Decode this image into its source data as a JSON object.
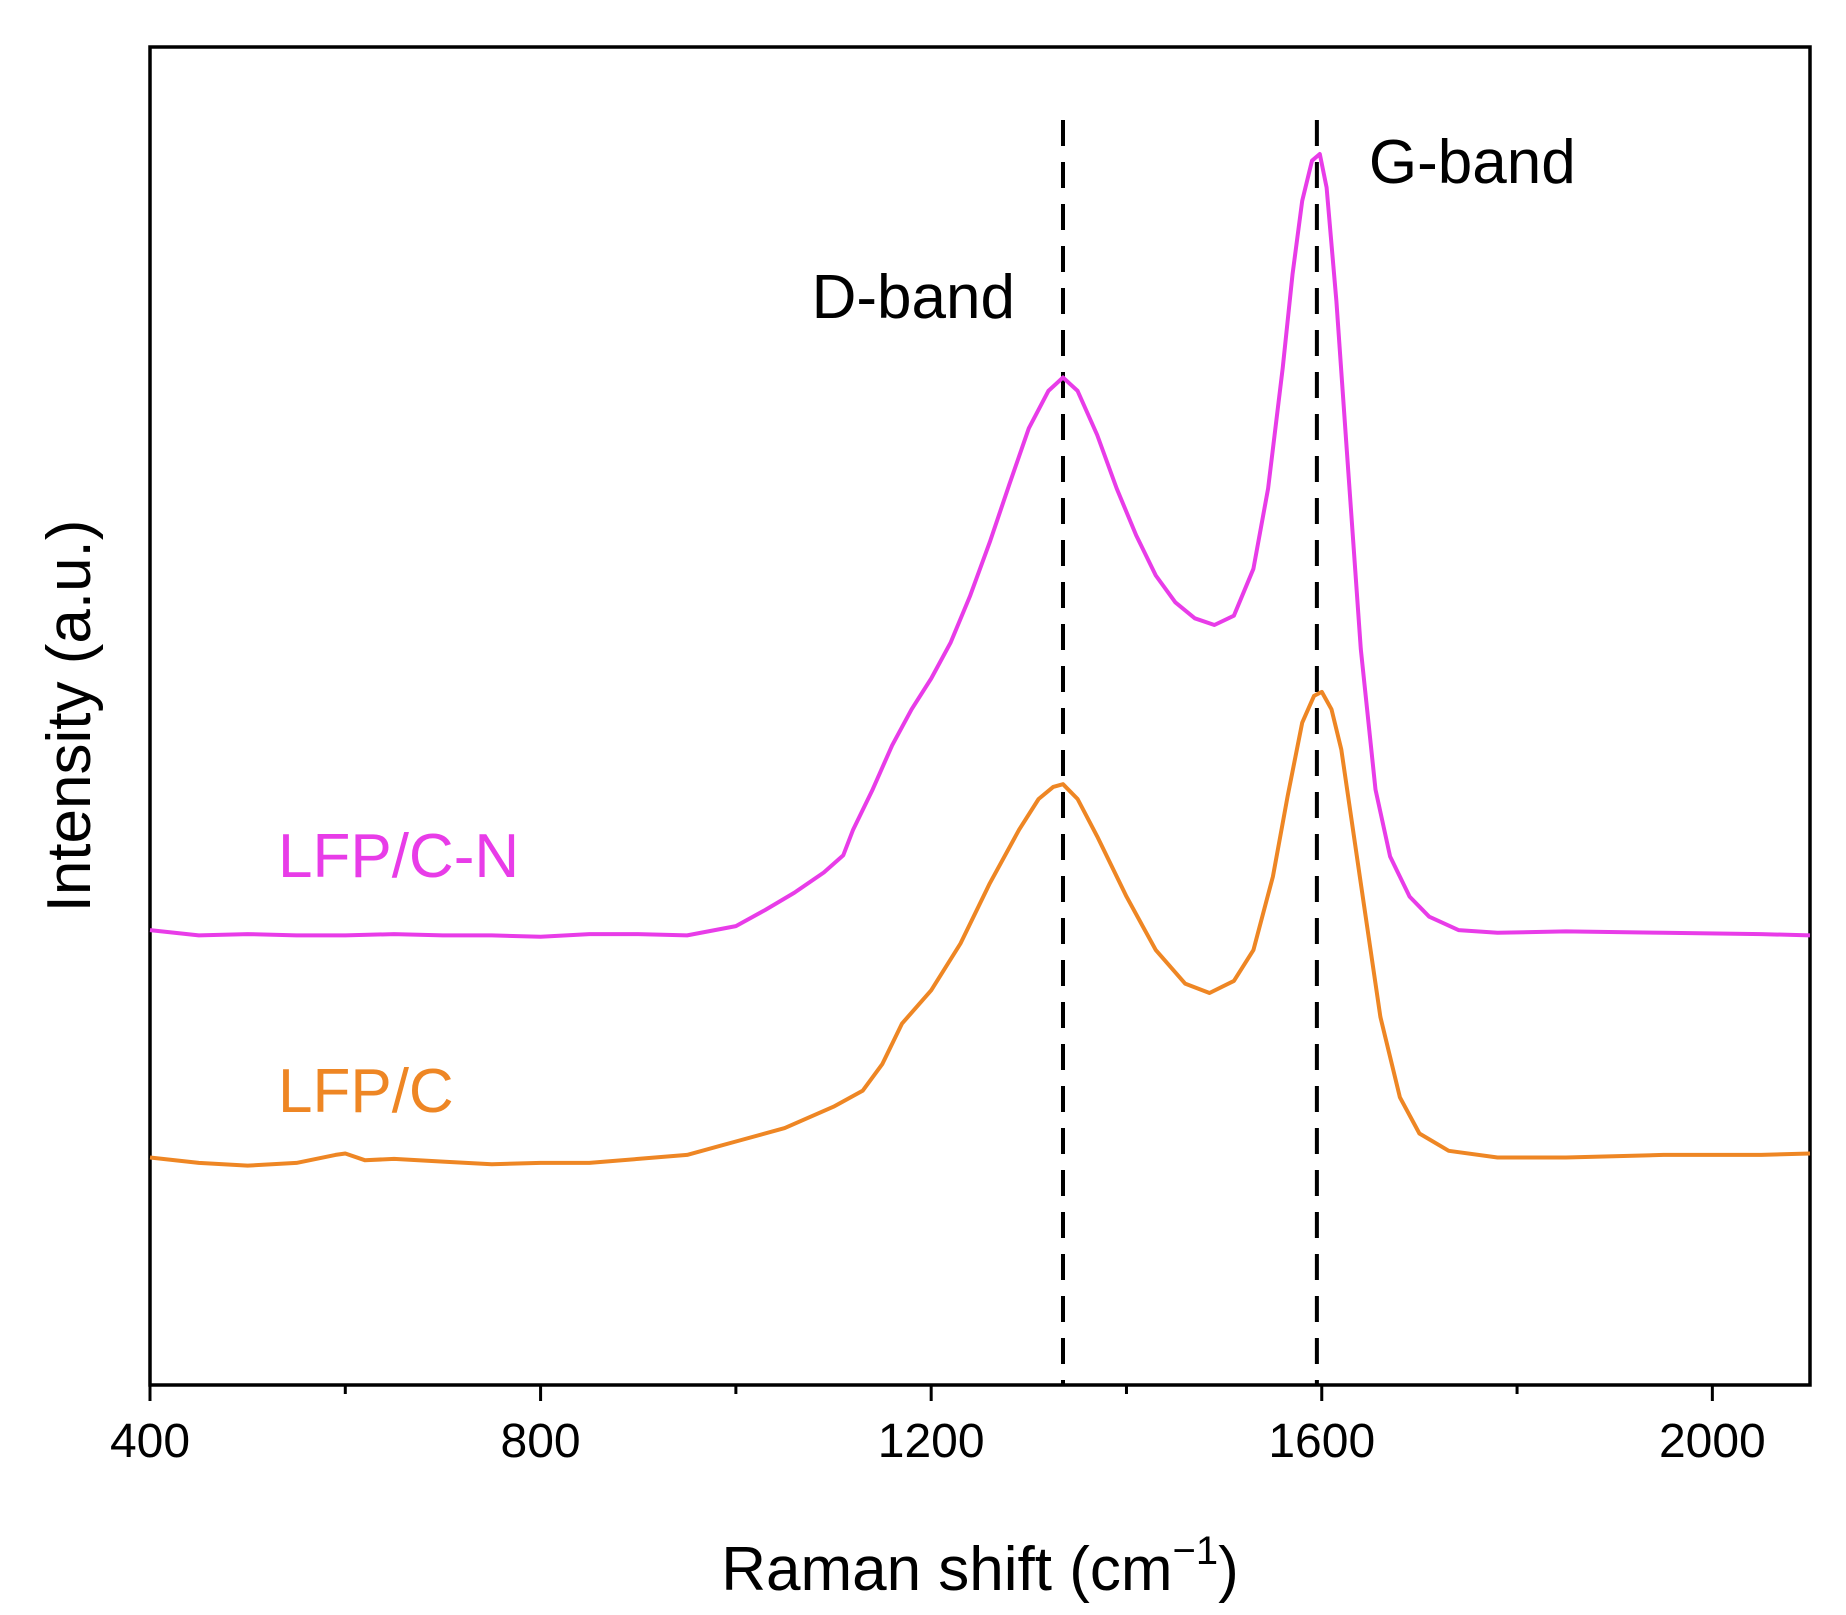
{
  "chart_data": {
    "type": "line",
    "title": "",
    "xlabel_main": "Raman shift (cm",
    "xlabel_sup": "−1",
    "xlabel_close": ")",
    "ylabel": "Intensity (a.u.)",
    "xlim": [
      400,
      2100
    ],
    "ylim": [
      0,
      100
    ],
    "xticks": [
      400,
      800,
      1200,
      1600,
      2000
    ],
    "xtick_labels": [
      "400",
      "800",
      "1200",
      "1600",
      "2000"
    ],
    "minor_xticks": [
      600,
      1000,
      1400,
      1800
    ],
    "y_ticks_shown": false,
    "grid": false,
    "reference_lines": [
      {
        "x": 1335,
        "label": "D-band",
        "style": "dashed"
      },
      {
        "x": 1595,
        "label": "G-band",
        "style": "dashed"
      }
    ],
    "series": [
      {
        "name": "LFP/C-N",
        "color": "#E83CE8",
        "x": [
          400,
          450,
          500,
          550,
          600,
          650,
          700,
          750,
          800,
          850,
          900,
          950,
          1000,
          1030,
          1060,
          1090,
          1110,
          1120,
          1140,
          1160,
          1180,
          1200,
          1220,
          1240,
          1260,
          1280,
          1300,
          1320,
          1335,
          1350,
          1370,
          1390,
          1410,
          1430,
          1450,
          1470,
          1490,
          1510,
          1530,
          1545,
          1560,
          1570,
          1580,
          1590,
          1598,
          1605,
          1615,
          1625,
          1640,
          1655,
          1670,
          1690,
          1710,
          1740,
          1780,
          1850,
          1950,
          2050,
          2100
        ],
        "values": [
          34.0,
          33.6,
          33.7,
          33.6,
          33.6,
          33.7,
          33.6,
          33.6,
          33.5,
          33.7,
          33.7,
          33.6,
          34.3,
          35.5,
          36.8,
          38.3,
          39.6,
          41.5,
          44.5,
          47.8,
          50.5,
          52.8,
          55.5,
          59.0,
          63.0,
          67.3,
          71.5,
          74.3,
          75.3,
          74.3,
          71.0,
          67.0,
          63.5,
          60.5,
          58.5,
          57.3,
          56.8,
          57.5,
          61.0,
          67.0,
          76.0,
          83.0,
          88.5,
          91.5,
          92.0,
          89.5,
          81.0,
          70.5,
          55.0,
          44.5,
          39.5,
          36.5,
          35.0,
          34.0,
          33.8,
          33.9,
          33.8,
          33.7,
          33.6
        ]
      },
      {
        "name": "LFP/C",
        "color": "#EE8624",
        "x": [
          400,
          450,
          500,
          550,
          590,
          600,
          620,
          650,
          700,
          750,
          800,
          850,
          900,
          950,
          1000,
          1050,
          1100,
          1130,
          1150,
          1170,
          1200,
          1230,
          1260,
          1290,
          1310,
          1325,
          1335,
          1350,
          1370,
          1400,
          1430,
          1460,
          1485,
          1510,
          1530,
          1550,
          1565,
          1580,
          1592,
          1600,
          1610,
          1620,
          1640,
          1660,
          1680,
          1700,
          1730,
          1780,
          1850,
          1950,
          2050,
          2100
        ],
        "values": [
          17.0,
          16.6,
          16.4,
          16.6,
          17.2,
          17.3,
          16.8,
          16.9,
          16.7,
          16.5,
          16.6,
          16.6,
          16.9,
          17.2,
          18.2,
          19.2,
          20.8,
          22.0,
          24.0,
          27.0,
          29.5,
          33.0,
          37.5,
          41.5,
          43.8,
          44.7,
          44.9,
          43.8,
          41.0,
          36.5,
          32.5,
          30.0,
          29.3,
          30.2,
          32.5,
          38.0,
          44.0,
          49.5,
          51.5,
          51.8,
          50.5,
          47.5,
          37.5,
          27.5,
          21.5,
          18.8,
          17.5,
          17.0,
          17.0,
          17.2,
          17.2,
          17.3
        ]
      }
    ]
  }
}
